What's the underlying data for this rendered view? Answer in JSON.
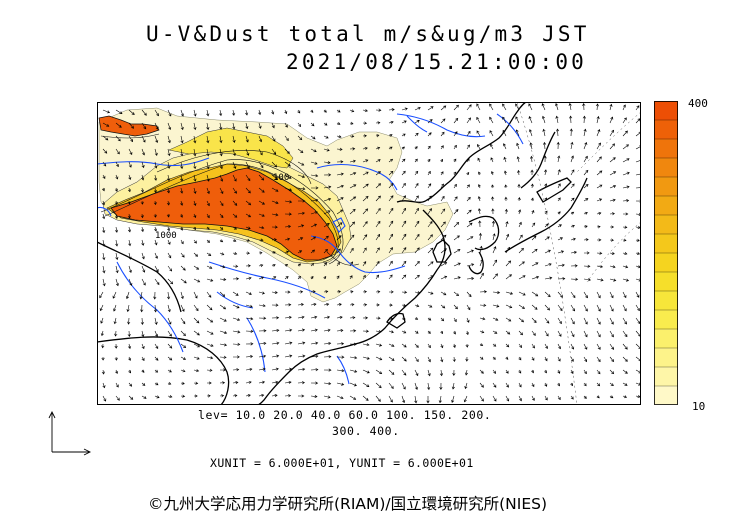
{
  "header": {
    "title": "U-V&Dust total m/s&ug/m3 JST",
    "datetime": "2021/08/15.21:00:00"
  },
  "colorbar": {
    "max_label": "400",
    "min_label": "10",
    "colors": [
      "#fff9c8",
      "#fef6a8",
      "#fdf38a",
      "#fbf06c",
      "#f9ec4e",
      "#f7e63a",
      "#f6df2a",
      "#f5d41f",
      "#f4c81b",
      "#f3ba18",
      "#f2aa14",
      "#f19911",
      "#f0870e",
      "#ef740b",
      "#ee6108",
      "#ed4f05"
    ]
  },
  "contour_legend": {
    "levels_line1": "lev= 10.0 20.0 40.0 60.0 100. 150. 200.",
    "levels_line2": "300. 400."
  },
  "map": {
    "contour_label_a": "100",
    "contour_label_b": "1000",
    "colors": {
      "land_fill": "#fbf5d0",
      "coast": "#000000",
      "rivers": "#1a4fff",
      "dust_high": "#ef5e0b",
      "vectors": "#000000"
    }
  },
  "units": {
    "line": "XUNIT = 6.000E+01, YUNIT = 6.000E+01"
  },
  "footer": {
    "copyright": "©九州大学応用力学研究所(RIAM)/国立環境研究所(NIES)"
  }
}
